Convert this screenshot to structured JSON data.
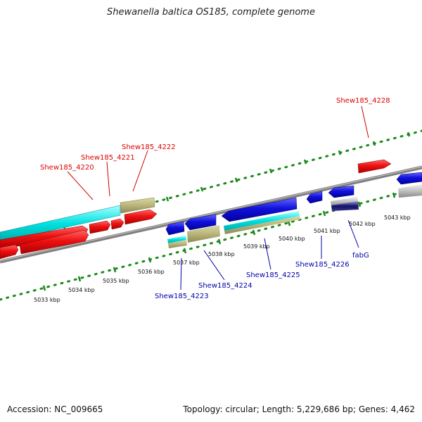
{
  "title": "Shewanella baltica OS185, complete genome",
  "footer": {
    "accession": "Accession: NC_009665",
    "summary": "Topology: circular; Length: 5,229,686 bp; Genes: 4,462"
  },
  "scale_labels": [
    {
      "text": "5033 kbp"
    },
    {
      "text": "5034 kbp"
    },
    {
      "text": "5035 kbp"
    },
    {
      "text": "5036 kbp"
    },
    {
      "text": "5037 kbp"
    },
    {
      "text": "5038 kbp"
    },
    {
      "text": "5039 kbp"
    },
    {
      "text": "5040 kbp"
    },
    {
      "text": "5041 kbp"
    },
    {
      "text": "5042 kbp"
    },
    {
      "text": "5043 kbp"
    }
  ],
  "gene_labels_top": [
    {
      "text": "Shew185_4220"
    },
    {
      "text": "Shew185_4221"
    },
    {
      "text": "Shew185_4222"
    },
    {
      "text": "Shew185_4228"
    }
  ],
  "gene_labels_bottom": [
    {
      "text": "Shew185_4223"
    },
    {
      "text": "Shew185_4224"
    },
    {
      "text": "Shew185_4225"
    },
    {
      "text": "Shew185_4226"
    },
    {
      "text": "fabG"
    }
  ],
  "colors": {
    "forward_gene": "#ee1111",
    "reverse_gene": "#1111dd",
    "rrna": "#00e0e0",
    "trna": "#b8b47a",
    "pseudo": "#c0c0c0",
    "dots": "#1a8a1a",
    "backbone": "#7f7f7f",
    "top_label": "#dd0000",
    "bottom_label": "#0000aa"
  }
}
